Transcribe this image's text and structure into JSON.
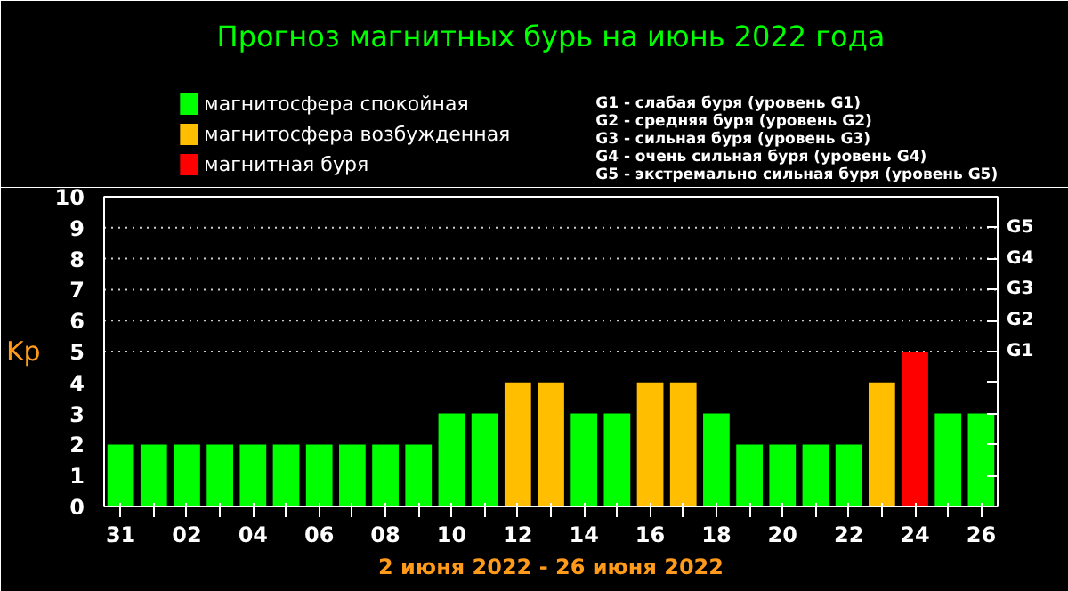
{
  "chart_data": {
    "type": "bar",
    "title": "Прогноз магнитных бурь на июнь 2022 года",
    "xlabel": "2 июня 2022 - 26 июня 2022",
    "ylabel": "Kp",
    "categories": [
      "31",
      null,
      "02",
      null,
      "04",
      null,
      "06",
      null,
      "08",
      null,
      "10",
      null,
      "12",
      null,
      "14",
      null,
      "16",
      null,
      "18",
      null,
      "20",
      null,
      "22",
      null,
      "24",
      null,
      "26"
    ],
    "series": [
      {
        "name": "магнитосфера спокойная",
        "color": "#00ff00",
        "values": [
          2,
          2,
          2,
          2,
          2,
          2,
          2,
          2,
          2,
          2,
          3,
          3,
          null,
          null,
          3,
          3,
          null,
          null,
          3,
          2,
          2,
          2,
          2,
          null,
          null,
          3,
          3
        ]
      },
      {
        "name": "магнитосфера возбужденная",
        "color": "#ffbf00",
        "values": [
          null,
          null,
          null,
          null,
          null,
          null,
          null,
          null,
          null,
          null,
          null,
          null,
          4,
          4,
          null,
          null,
          4,
          4,
          null,
          null,
          null,
          null,
          null,
          4,
          null,
          null,
          null
        ]
      },
      {
        "name": "магнитная буря",
        "color": "#ff0000",
        "values": [
          null,
          null,
          null,
          null,
          null,
          null,
          null,
          null,
          null,
          null,
          null,
          null,
          null,
          null,
          null,
          null,
          null,
          null,
          null,
          null,
          null,
          null,
          null,
          null,
          5,
          null,
          null
        ]
      }
    ],
    "ylim": [
      0,
      10
    ],
    "yticks": [
      0,
      1,
      2,
      3,
      4,
      5,
      6,
      7,
      8,
      9,
      10
    ],
    "ref_lines": [
      {
        "axis": "y",
        "value": 5,
        "label": "G1"
      },
      {
        "axis": "y",
        "value": 6,
        "label": "G2"
      },
      {
        "axis": "y",
        "value": 7,
        "label": "G3"
      },
      {
        "axis": "y",
        "value": 8,
        "label": "G4"
      },
      {
        "axis": "y",
        "value": 9,
        "label": "G5"
      }
    ],
    "legend": "top left",
    "annotations": [
      "G1 - слабая буря (уровень G1)",
      "G2 - средняя буря (уровень G2)",
      "G3 - сильная буря (уровень G3)",
      "G4 - очень сильная буря (уровень G4)",
      "G5 - экстремально сильная буря (уровень G5)"
    ]
  }
}
